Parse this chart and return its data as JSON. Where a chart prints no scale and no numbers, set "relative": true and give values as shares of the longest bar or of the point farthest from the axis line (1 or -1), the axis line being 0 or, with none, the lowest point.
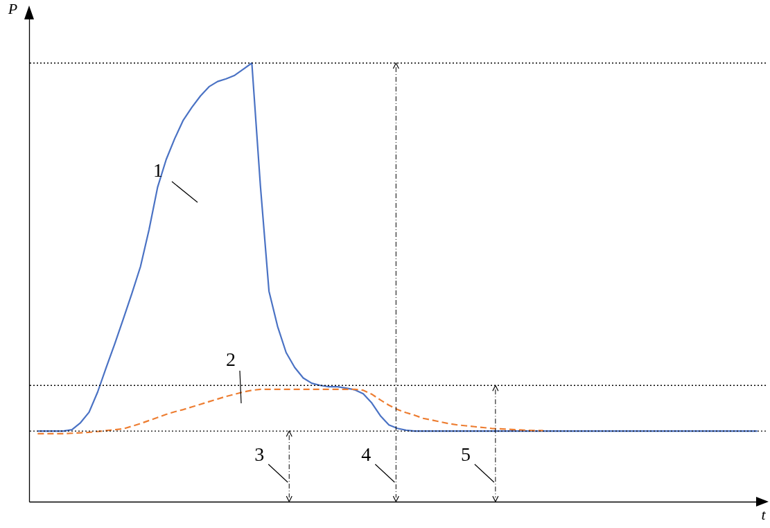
{
  "chart_data": {
    "type": "line",
    "relative": true,
    "xlabel": "t",
    "ylabel": "P",
    "tick_labels": false,
    "grid": false,
    "legend": false,
    "categories": [
      null,
      null,
      null,
      null,
      null,
      null,
      null,
      null,
      null,
      null,
      null,
      null,
      null,
      null,
      null,
      null,
      null,
      null,
      null,
      null,
      null,
      null,
      null,
      null,
      null,
      null,
      null,
      null,
      null,
      null,
      null,
      null,
      null,
      null,
      null,
      null,
      null,
      null,
      null,
      null,
      null,
      null,
      null,
      null,
      null,
      null,
      null,
      null,
      null,
      null,
      null,
      null,
      null,
      null,
      null,
      null,
      null,
      null,
      null,
      null,
      null,
      null,
      null,
      null,
      null,
      null,
      null,
      null,
      null,
      null,
      null,
      null,
      null,
      null,
      null,
      null,
      null,
      null,
      null,
      null,
      null,
      null,
      null,
      null,
      null
    ],
    "series": [
      {
        "name": "1",
        "color": "#4a72c4",
        "line_style": "solid",
        "values": [
          0.161,
          0.161,
          0.161,
          0.161,
          0.164,
          0.18,
          0.204,
          0.25,
          0.306,
          0.36,
          0.417,
          0.475,
          0.536,
          0.62,
          0.717,
          0.78,
          0.828,
          0.87,
          0.899,
          0.925,
          0.946,
          0.958,
          0.964,
          0.972,
          0.986,
          1,
          0.72,
          0.48,
          0.4,
          0.34,
          0.306,
          0.282,
          0.27,
          0.265,
          0.262,
          0.262,
          0.259,
          0.255,
          0.246,
          0.225,
          0.196,
          0.175,
          0.167,
          0.163,
          0.161,
          0.161,
          0.161,
          0.161,
          0.161,
          0.161,
          0.161,
          0.161,
          0.161,
          0.161,
          0.161,
          0.161,
          0.161,
          0.161,
          0.161,
          0.161,
          0.161,
          0.161,
          0.161,
          0.161,
          0.161,
          0.161,
          0.161,
          0.161,
          0.161,
          0.161,
          0.161,
          0.161,
          0.161,
          0.161,
          0.161,
          0.161,
          0.161,
          0.161,
          0.161,
          0.161,
          0.161,
          0.161,
          0.161,
          0.161,
          0.161
        ]
      },
      {
        "name": "2",
        "color": "#ed7d31",
        "line_style": "dashed",
        "values": [
          0.155,
          0.155,
          0.155,
          0.155,
          0.156,
          0.157,
          0.158,
          0.16,
          0.162,
          0.164,
          0.166,
          0.172,
          0.178,
          0.185,
          0.192,
          0.199,
          0.205,
          0.21,
          0.216,
          0.222,
          0.228,
          0.234,
          0.24,
          0.245,
          0.25,
          0.254,
          0.256,
          0.256,
          0.256,
          0.256,
          0.256,
          0.256,
          0.256,
          0.256,
          0.256,
          0.256,
          0.256,
          0.256,
          0.254,
          0.245,
          0.232,
          0.22,
          0.21,
          0.203,
          0.197,
          0.19,
          0.186,
          0.182,
          0.178,
          0.175,
          0.173,
          0.171,
          0.169,
          0.167,
          0.166,
          0.165,
          0.164,
          0.163,
          0.162,
          0.162,
          null,
          null,
          null,
          null,
          null,
          null,
          null,
          null,
          null,
          null,
          null,
          null,
          null,
          null,
          null,
          null,
          null,
          null,
          null,
          null,
          null,
          null,
          null,
          null,
          null
        ]
      }
    ],
    "ref_lines": [
      {
        "axis": "y",
        "value": 0.161,
        "color": "#000000",
        "line_style": "dotted"
      },
      {
        "axis": "y",
        "value": 0.265,
        "color": "#000000",
        "line_style": "dotted"
      },
      {
        "axis": "y",
        "value": 1,
        "color": "#000000",
        "line_style": "dotted"
      }
    ],
    "annotations": [
      "3",
      "4",
      "5"
    ]
  }
}
